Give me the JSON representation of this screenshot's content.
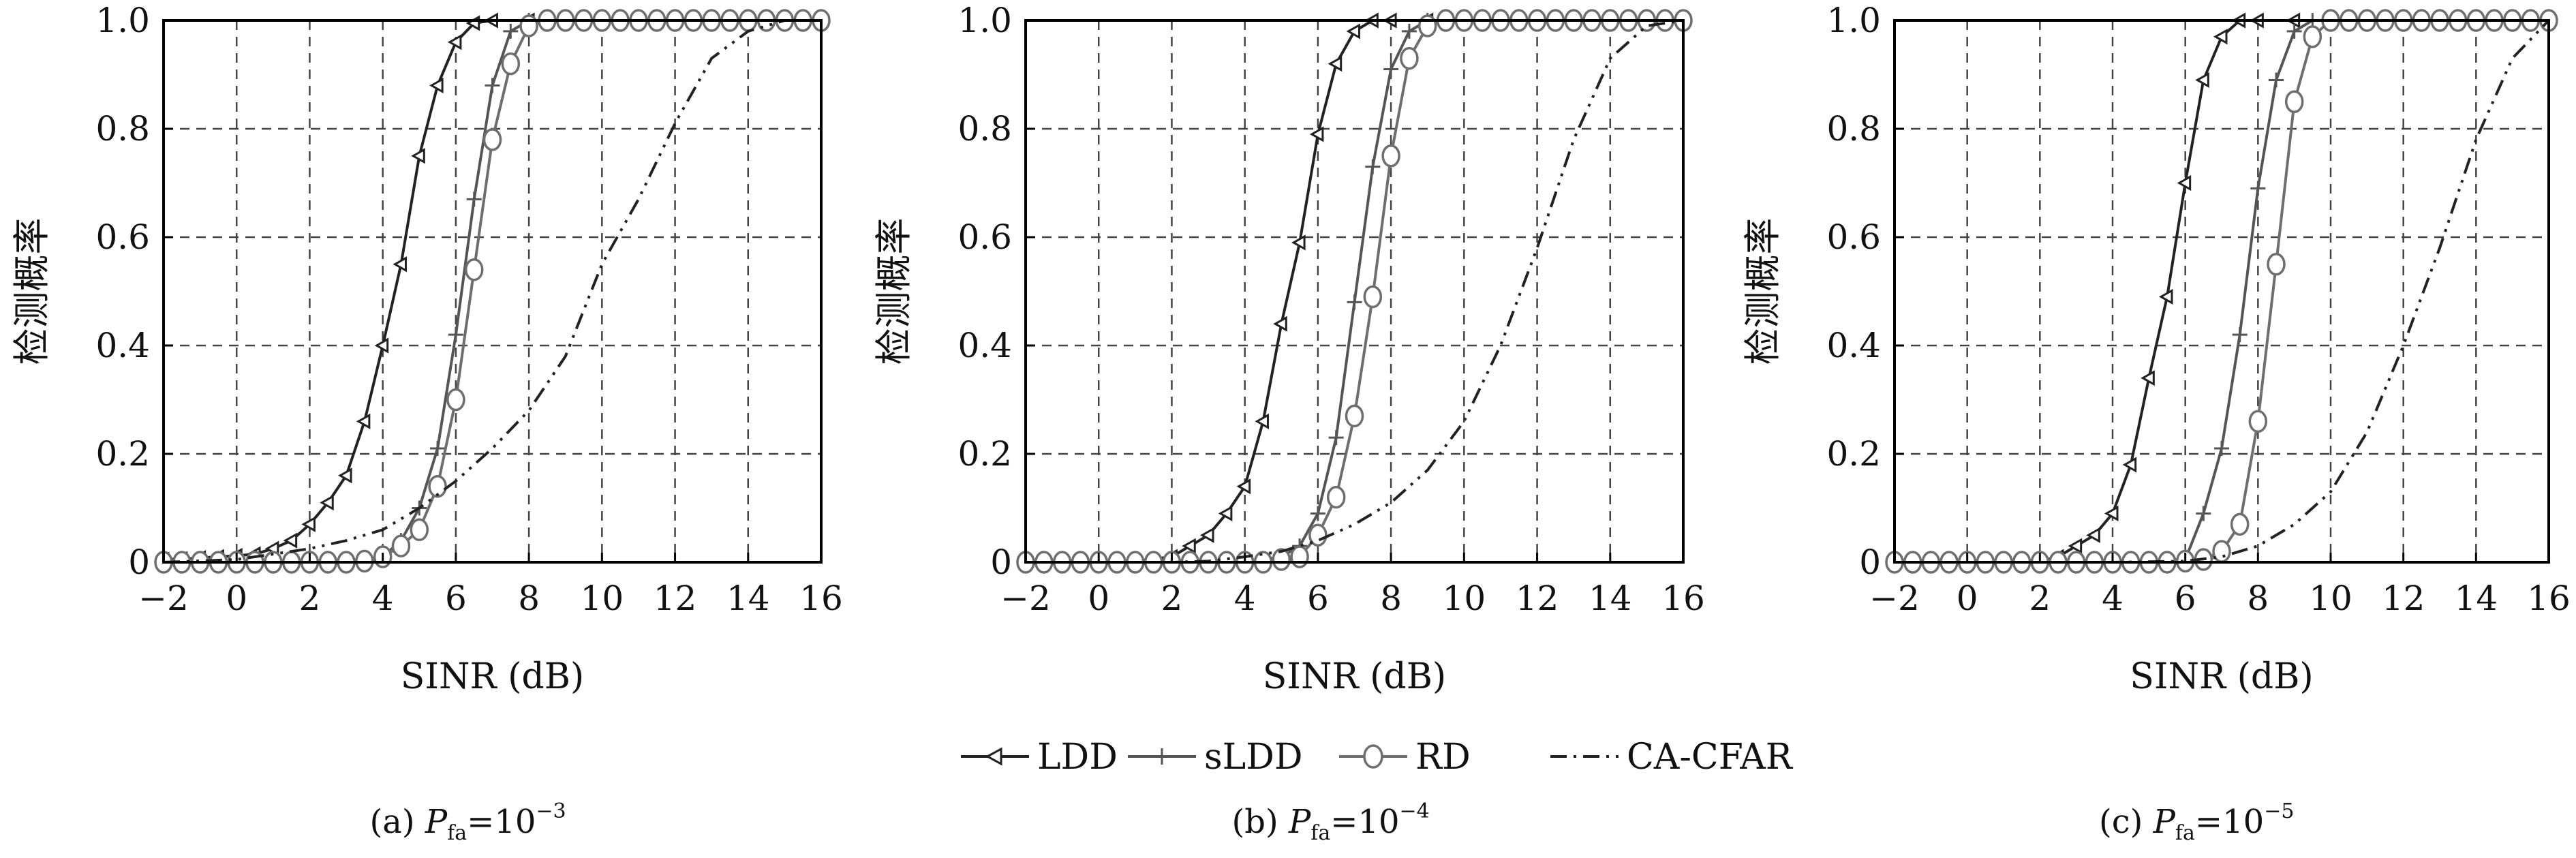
{
  "chart_data": [
    {
      "type": "line",
      "caption": {
        "prefix": "(a) ",
        "var": "P",
        "sub": "fa",
        "eq": "=10",
        "exp": "−3"
      },
      "xlabel": "SINR (dB)",
      "ylabel": "检测概率",
      "xlim": [
        -2,
        16
      ],
      "ylim": [
        0,
        1.0
      ],
      "xticks": [
        "−2",
        "0",
        "2",
        "4",
        "6",
        "8",
        "10",
        "12",
        "14",
        "16"
      ],
      "yticks": [
        "0",
        "0.2",
        "0.4",
        "0.6",
        "0.8",
        "1.0"
      ],
      "grid": true,
      "series": [
        {
          "name": "LDD",
          "x": [
            -2,
            -1.5,
            -1,
            -0.5,
            0,
            0.5,
            1,
            1.5,
            2,
            2.5,
            3,
            3.5,
            4,
            4.5,
            5,
            5.5,
            6,
            6.5,
            7,
            8,
            9,
            10,
            11,
            12,
            13,
            14,
            15,
            16
          ],
          "y": [
            0.005,
            0.006,
            0.008,
            0.01,
            0.012,
            0.015,
            0.025,
            0.04,
            0.07,
            0.11,
            0.16,
            0.26,
            0.4,
            0.55,
            0.75,
            0.88,
            0.96,
            0.995,
            1,
            1,
            1,
            1,
            1,
            1,
            1,
            1,
            1,
            1
          ]
        },
        {
          "name": "sLDD",
          "x": [
            -2,
            -1,
            0,
            1,
            2,
            3,
            3.5,
            4,
            4.5,
            5,
            5.5,
            6,
            6.5,
            7,
            7.5,
            8,
            9,
            10,
            11,
            12,
            13,
            14,
            15,
            16
          ],
          "y": [
            0,
            0,
            0,
            0,
            0,
            0.002,
            0.005,
            0.01,
            0.04,
            0.1,
            0.21,
            0.42,
            0.67,
            0.88,
            0.98,
            1,
            1,
            1,
            1,
            1,
            1,
            1,
            1,
            1
          ]
        },
        {
          "name": "RD",
          "x": [
            -2,
            -1.5,
            -1,
            -0.5,
            0,
            0.5,
            1,
            1.5,
            2,
            2.5,
            3,
            3.5,
            4,
            4.5,
            5,
            5.5,
            6,
            6.5,
            7,
            7.5,
            8,
            8.5,
            9,
            9.5,
            10,
            10.5,
            11,
            11.5,
            12,
            12.5,
            13,
            13.5,
            14,
            14.5,
            15,
            15.5,
            16
          ],
          "y": [
            0,
            0,
            0,
            0,
            0,
            0,
            0,
            0,
            0,
            0,
            0,
            0.002,
            0.01,
            0.03,
            0.06,
            0.14,
            0.3,
            0.54,
            0.78,
            0.92,
            0.99,
            1,
            1,
            1,
            1,
            1,
            1,
            1,
            1,
            1,
            1,
            1,
            1,
            1,
            1,
            1,
            1
          ]
        },
        {
          "name": "CA-CFAR",
          "x": [
            -2,
            0,
            1,
            2,
            3,
            4,
            5,
            6,
            7,
            8,
            9,
            10,
            11,
            12,
            13,
            14,
            15,
            16
          ],
          "y": [
            0,
            0.005,
            0.015,
            0.025,
            0.04,
            0.06,
            0.1,
            0.15,
            0.21,
            0.28,
            0.38,
            0.55,
            0.67,
            0.81,
            0.93,
            0.98,
            1,
            1
          ]
        }
      ]
    },
    {
      "type": "line",
      "caption": {
        "prefix": "(b) ",
        "var": "P",
        "sub": "fa",
        "eq": "=10",
        "exp": "−4"
      },
      "xlabel": "SINR (dB)",
      "ylabel": "检测概率",
      "xlim": [
        -2,
        16
      ],
      "ylim": [
        0,
        1.0
      ],
      "xticks": [
        "−2",
        "0",
        "2",
        "4",
        "6",
        "8",
        "10",
        "12",
        "14",
        "16"
      ],
      "yticks": [
        "0",
        "0.2",
        "0.4",
        "0.6",
        "0.8",
        "1.0"
      ],
      "grid": true,
      "series": [
        {
          "name": "LDD",
          "x": [
            -2,
            -1,
            0,
            1,
            2,
            2.5,
            3,
            3.5,
            4,
            4.5,
            5,
            5.5,
            6,
            6.5,
            7,
            7.5,
            8,
            9,
            10,
            11,
            12,
            13,
            14,
            15,
            16
          ],
          "y": [
            0,
            0,
            0,
            0.002,
            0.01,
            0.03,
            0.05,
            0.09,
            0.14,
            0.26,
            0.44,
            0.59,
            0.79,
            0.92,
            0.98,
            1,
            1,
            1,
            1,
            1,
            1,
            1,
            1,
            1,
            1
          ]
        },
        {
          "name": "sLDD",
          "x": [
            -2,
            -1,
            0,
            1,
            2,
            3,
            4,
            5,
            5.5,
            6,
            6.5,
            7,
            7.5,
            8,
            8.5,
            9,
            10,
            11,
            12,
            13,
            14,
            15,
            16
          ],
          "y": [
            0,
            0,
            0,
            0,
            0,
            0,
            0,
            0.01,
            0.03,
            0.09,
            0.23,
            0.48,
            0.73,
            0.91,
            0.98,
            1,
            1,
            1,
            1,
            1,
            1,
            1,
            1
          ]
        },
        {
          "name": "RD",
          "x": [
            -2,
            -1.5,
            -1,
            -0.5,
            0,
            0.5,
            1,
            1.5,
            2,
            2.5,
            3,
            3.5,
            4,
            4.5,
            5,
            5.5,
            6,
            6.5,
            7,
            7.5,
            8,
            8.5,
            9,
            9.5,
            10,
            10.5,
            11,
            11.5,
            12,
            12.5,
            13,
            13.5,
            14,
            14.5,
            15,
            15.5,
            16
          ],
          "y": [
            0,
            0,
            0,
            0,
            0,
            0,
            0,
            0,
            0,
            0,
            0,
            0,
            0,
            0,
            0.005,
            0.01,
            0.05,
            0.12,
            0.27,
            0.49,
            0.75,
            0.93,
            0.99,
            1,
            1,
            1,
            1,
            1,
            1,
            1,
            1,
            1,
            1,
            1,
            1,
            1,
            1
          ]
        },
        {
          "name": "CA-CFAR",
          "x": [
            -2,
            0,
            2,
            3,
            4,
            5,
            6,
            7,
            8,
            9,
            10,
            11,
            12,
            13,
            14,
            15,
            16
          ],
          "y": [
            0,
            0,
            0,
            0.002,
            0.01,
            0.02,
            0.04,
            0.07,
            0.11,
            0.17,
            0.26,
            0.4,
            0.58,
            0.78,
            0.93,
            0.99,
            1
          ]
        }
      ]
    },
    {
      "type": "line",
      "caption": {
        "prefix": "(c) ",
        "var": "P",
        "sub": "fa",
        "eq": "=10",
        "exp": "−5"
      },
      "xlabel": "SINR (dB)",
      "ylabel": "检测概率",
      "xlim": [
        -2,
        16
      ],
      "ylim": [
        0,
        1.0
      ],
      "xticks": [
        "−2",
        "0",
        "2",
        "4",
        "6",
        "8",
        "10",
        "12",
        "14",
        "16"
      ],
      "yticks": [
        "0",
        "0.2",
        "0.4",
        "0.6",
        "0.8",
        "1.0"
      ],
      "grid": true,
      "series": [
        {
          "name": "LDD",
          "x": [
            -2,
            -1,
            0,
            1,
            2,
            2.5,
            3,
            3.5,
            4,
            4.5,
            5,
            5.5,
            6,
            6.5,
            7,
            7.5,
            8,
            9,
            10,
            11,
            12,
            13,
            14,
            15,
            16
          ],
          "y": [
            0,
            0,
            0,
            0,
            0.002,
            0.01,
            0.03,
            0.05,
            0.09,
            0.18,
            0.34,
            0.49,
            0.7,
            0.89,
            0.97,
            1,
            1,
            1,
            1,
            1,
            1,
            1,
            1,
            1,
            1
          ]
        },
        {
          "name": "sLDD",
          "x": [
            -2,
            -1,
            0,
            1,
            2,
            3,
            4,
            5,
            6,
            6.5,
            7,
            7.5,
            8,
            8.5,
            9,
            9.5,
            10,
            11,
            12,
            13,
            14,
            15,
            16
          ],
          "y": [
            0,
            0,
            0,
            0,
            0,
            0,
            0,
            0,
            0.005,
            0.09,
            0.21,
            0.42,
            0.69,
            0.89,
            0.98,
            1,
            1,
            1,
            1,
            1,
            1,
            1,
            1
          ]
        },
        {
          "name": "RD",
          "x": [
            -2,
            -1.5,
            -1,
            -0.5,
            0,
            0.5,
            1,
            1.5,
            2,
            2.5,
            3,
            3.5,
            4,
            4.5,
            5,
            5.5,
            6,
            6.5,
            7,
            7.5,
            8,
            8.5,
            9,
            9.5,
            10,
            10.5,
            11,
            11.5,
            12,
            12.5,
            13,
            13.5,
            14,
            14.5,
            15,
            15.5,
            16
          ],
          "y": [
            0,
            0,
            0,
            0,
            0,
            0,
            0,
            0,
            0,
            0,
            0,
            0,
            0,
            0,
            0,
            0,
            0.002,
            0.005,
            0.02,
            0.07,
            0.26,
            0.55,
            0.85,
            0.97,
            1,
            1,
            1,
            1,
            1,
            1,
            1,
            1,
            1,
            1,
            1,
            1,
            1
          ]
        },
        {
          "name": "CA-CFAR",
          "x": [
            -2,
            0,
            2,
            4,
            6,
            7,
            8,
            9,
            10,
            11,
            12,
            13,
            14,
            15,
            16
          ],
          "y": [
            0,
            0,
            0,
            0,
            0.002,
            0.01,
            0.03,
            0.07,
            0.13,
            0.24,
            0.4,
            0.58,
            0.78,
            0.93,
            1
          ]
        }
      ]
    }
  ],
  "legend": {
    "placement": "bottom-center",
    "items": [
      {
        "label": "LDD",
        "marker": "left-triangle",
        "color": "#222222"
      },
      {
        "label": "sLDD",
        "marker": "plus-dash",
        "color": "#555555"
      },
      {
        "label": "RD",
        "marker": "circle",
        "color": "#6e6e6e"
      },
      {
        "label": "CA-CFAR",
        "marker": "none",
        "color": "#222222"
      }
    ]
  },
  "style": {
    "grid_color": "#444444",
    "axis_color": "#000000",
    "series_colors": {
      "LDD": "#222222",
      "sLDD": "#555555",
      "RD": "#6e6e6e",
      "CA-CFAR": "#222222"
    }
  }
}
